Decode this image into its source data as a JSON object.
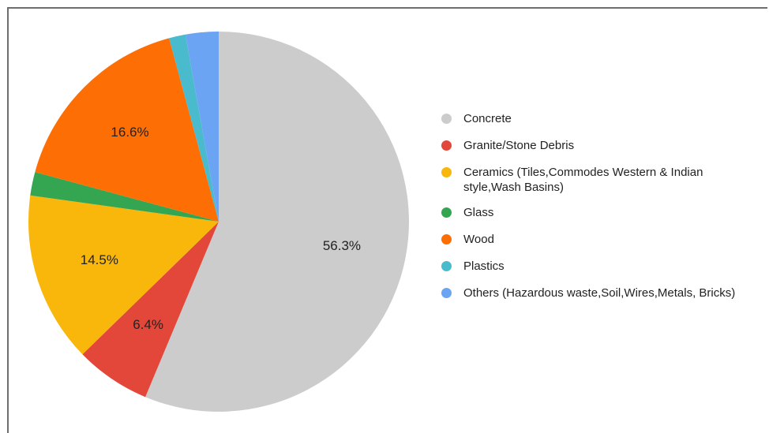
{
  "chart_data": {
    "type": "pie",
    "title": "",
    "slices": [
      {
        "label": "Concrete",
        "value": 56.3,
        "color": "#cccccc",
        "display": "56.3%"
      },
      {
        "label": "Granite/Stone Debris",
        "value": 6.4,
        "color": "#e2473a",
        "display": "6.4%"
      },
      {
        "label": "Ceramics (Tiles,Commodes  Western & Indian style,Wash Basins)",
        "value": 14.5,
        "color": "#f9b70c",
        "display": "14.5%"
      },
      {
        "label": "Glass",
        "value": 2.0,
        "color": "#34a652",
        "display": ""
      },
      {
        "label": "Wood",
        "value": 16.6,
        "color": "#fd6e05",
        "display": "16.6%"
      },
      {
        "label": "Plastics",
        "value": 1.4,
        "color": "#49bbcc",
        "display": ""
      },
      {
        "label": "Others (Hazardous waste,Soil,Wires,Metals, Bricks)",
        "value": 2.8,
        "color": "#6ca4f4",
        "display": ""
      }
    ],
    "start_angle_deg": 0,
    "direction": "clockwise",
    "legend_position": "right"
  }
}
